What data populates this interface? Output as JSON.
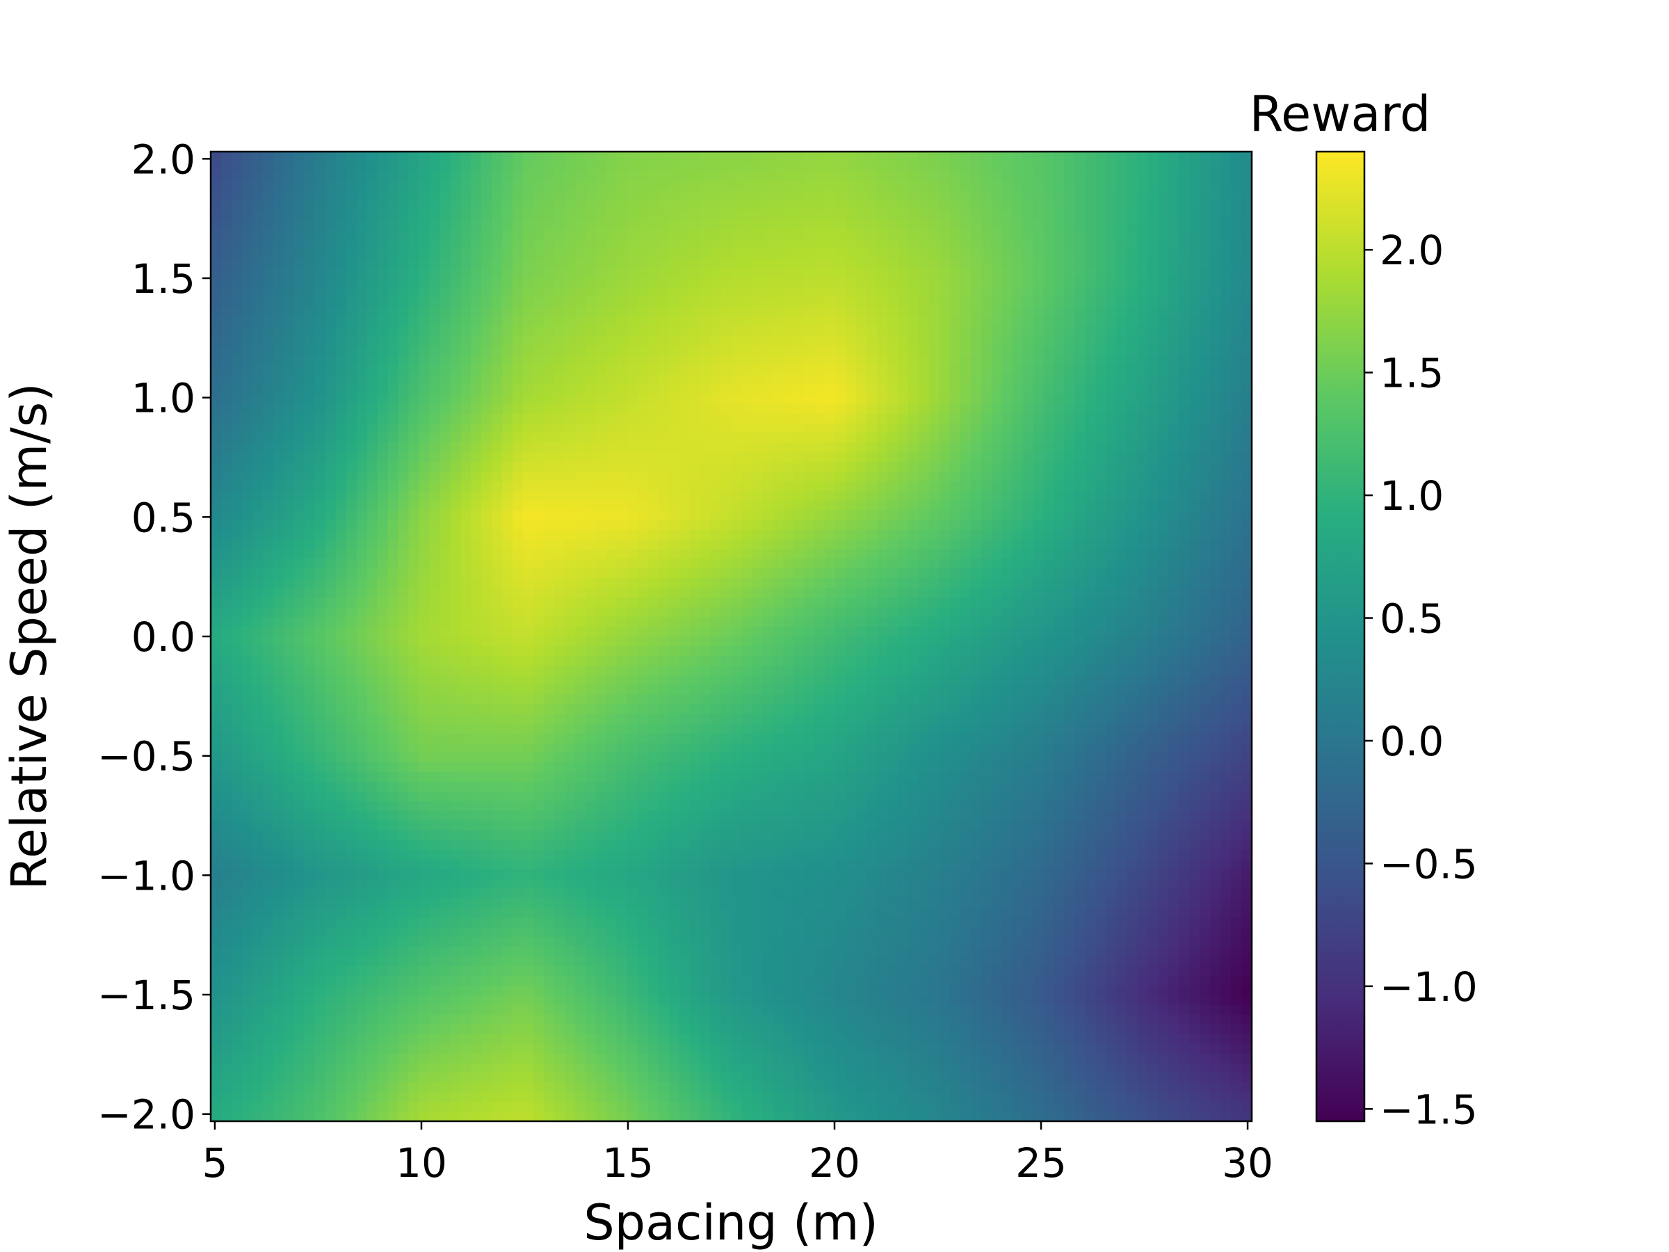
{
  "chart_data": {
    "type": "heatmap",
    "title": "",
    "xlabel": "Spacing (m)",
    "ylabel": "Relative Speed (m/s)",
    "xlim": [
      5,
      30
    ],
    "ylim": [
      -2.0,
      2.0
    ],
    "x_ticks": [
      "5",
      "10",
      "15",
      "20",
      "25",
      "30"
    ],
    "y_ticks": [
      "2.0",
      "1.5",
      "1.0",
      "0.5",
      "0.0",
      "−0.5",
      "−1.0",
      "−1.5",
      "−2.0"
    ],
    "colorbar": {
      "label": "Reward",
      "colormap": "viridis",
      "range": [
        -1.55,
        2.4
      ],
      "ticks": [
        "2.0",
        "1.5",
        "1.0",
        "0.5",
        "0.0",
        "−0.5",
        "−1.0",
        "−1.5"
      ]
    },
    "grid": {
      "x": [
        5.0,
        7.5,
        10.0,
        12.5,
        15.0,
        17.5,
        20.0,
        22.5,
        25.0,
        27.5,
        30.0
      ],
      "y": [
        2.0,
        1.5,
        1.0,
        0.5,
        0.0,
        -0.5,
        -1.0,
        -1.5,
        -2.0
      ],
      "z": [
        [
          -0.65,
          0.1,
          0.75,
          1.45,
          1.65,
          1.7,
          1.75,
          1.6,
          1.35,
          0.95,
          0.35
        ],
        [
          -0.35,
          0.25,
          0.95,
          1.6,
          1.8,
          1.95,
          2.0,
          1.8,
          1.4,
          0.9,
          0.3
        ],
        [
          -0.1,
          0.45,
          1.25,
          1.85,
          2.05,
          2.25,
          2.35,
          1.8,
          1.2,
          0.7,
          0.15
        ],
        [
          0.3,
          0.85,
          1.7,
          2.35,
          2.3,
          2.05,
          1.75,
          1.4,
          0.95,
          0.45,
          -0.05
        ],
        [
          0.85,
          1.35,
          1.85,
          2.05,
          1.75,
          1.5,
          1.15,
          0.85,
          0.5,
          0.15,
          -0.3
        ],
        [
          0.55,
          1.05,
          1.55,
          1.55,
          1.2,
          0.95,
          0.75,
          0.4,
          0.1,
          -0.35,
          -0.75
        ],
        [
          0.15,
          0.5,
          0.8,
          1.0,
          0.8,
          0.5,
          0.4,
          0.15,
          -0.2,
          -0.7,
          -1.25
        ],
        [
          0.45,
          0.95,
          1.3,
          1.55,
          1.1,
          0.55,
          0.25,
          0.0,
          -0.45,
          -1.05,
          -1.55
        ],
        [
          0.85,
          1.25,
          1.85,
          2.0,
          1.55,
          1.0,
          0.55,
          0.25,
          -0.15,
          -0.6,
          -0.95
        ]
      ]
    }
  }
}
